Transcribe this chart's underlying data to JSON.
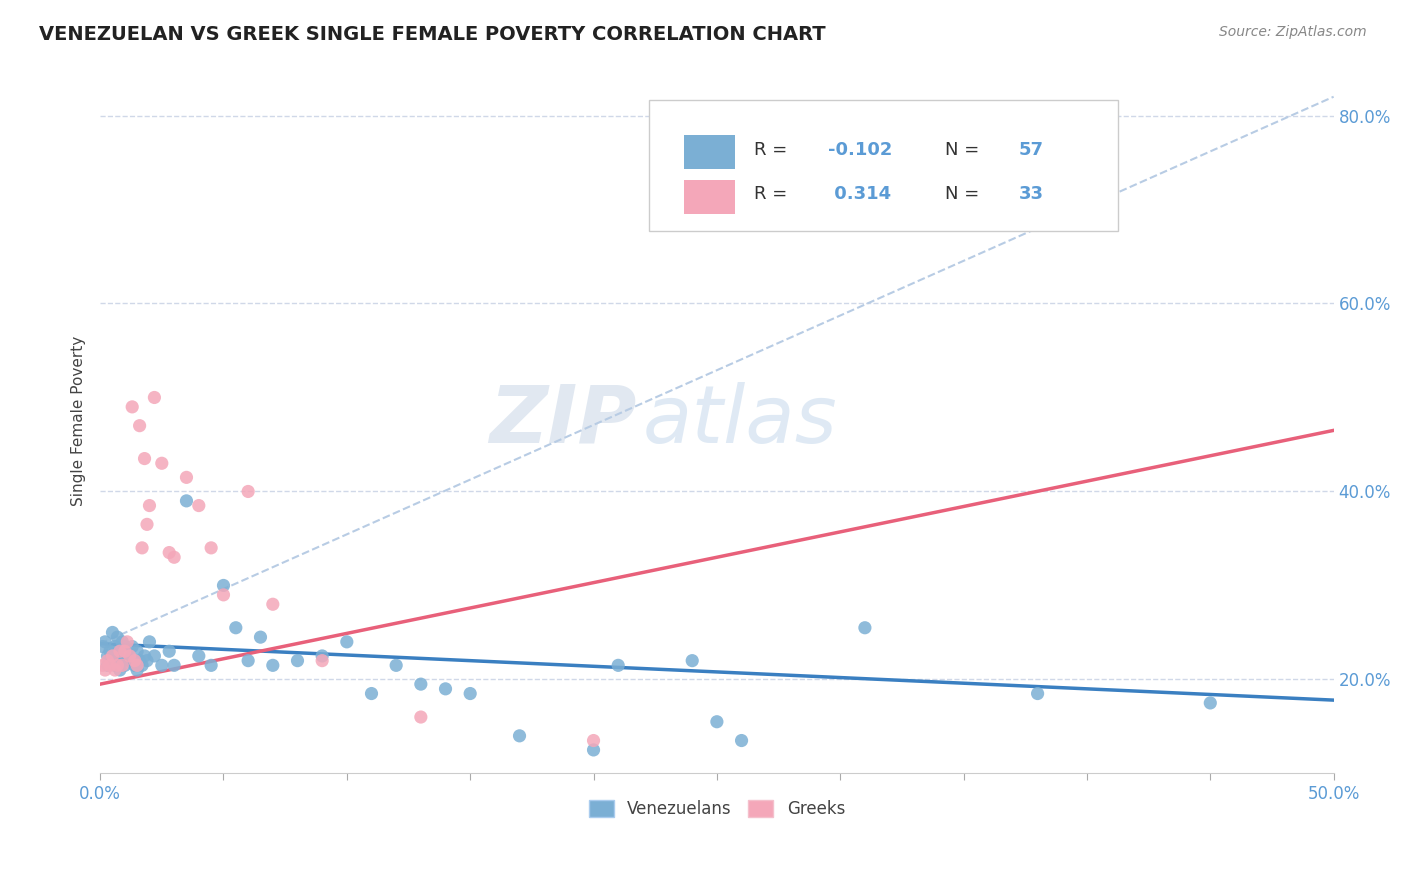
{
  "title": "VENEZUELAN VS GREEK SINGLE FEMALE POVERTY CORRELATION CHART",
  "source": "Source: ZipAtlas.com",
  "ylabel": "Single Female Poverty",
  "xlim": [
    0.0,
    0.5
  ],
  "ylim": [
    0.1,
    0.85
  ],
  "xtick_positions": [
    0.0,
    0.05,
    0.1,
    0.15,
    0.2,
    0.25,
    0.3,
    0.35,
    0.4,
    0.45,
    0.5
  ],
  "ytick_positions": [
    0.2,
    0.4,
    0.6,
    0.8
  ],
  "ytick_labels": [
    "20.0%",
    "40.0%",
    "60.0%",
    "80.0%"
  ],
  "venezuelan_color": "#7bafd4",
  "greek_color": "#f4a7b9",
  "trendline_ven_color": "#3a7fc1",
  "trendline_greek_color": "#e8607a",
  "trendline_top_color": "#b8cce4",
  "legend_R_ven": "-0.102",
  "legend_N_ven": "57",
  "legend_R_greek": "0.314",
  "legend_N_greek": "33",
  "watermark_zip": "ZIP",
  "watermark_atlas": "atlas",
  "background_color": "#ffffff",
  "grid_color": "#d0d8e8",
  "venezuelan_x": [
    0.001,
    0.002,
    0.003,
    0.003,
    0.004,
    0.005,
    0.005,
    0.006,
    0.006,
    0.007,
    0.007,
    0.008,
    0.008,
    0.009,
    0.009,
    0.01,
    0.01,
    0.011,
    0.012,
    0.013,
    0.014,
    0.015,
    0.015,
    0.016,
    0.017,
    0.018,
    0.019,
    0.02,
    0.022,
    0.025,
    0.028,
    0.03,
    0.035,
    0.04,
    0.045,
    0.05,
    0.055,
    0.06,
    0.065,
    0.07,
    0.08,
    0.09,
    0.1,
    0.11,
    0.12,
    0.13,
    0.14,
    0.15,
    0.17,
    0.2,
    0.21,
    0.24,
    0.25,
    0.26,
    0.31,
    0.38,
    0.45
  ],
  "venezuelan_y": [
    0.235,
    0.24,
    0.225,
    0.215,
    0.23,
    0.22,
    0.25,
    0.215,
    0.235,
    0.22,
    0.245,
    0.23,
    0.21,
    0.24,
    0.22,
    0.235,
    0.215,
    0.225,
    0.22,
    0.235,
    0.215,
    0.23,
    0.21,
    0.22,
    0.215,
    0.225,
    0.22,
    0.24,
    0.225,
    0.215,
    0.23,
    0.215,
    0.39,
    0.225,
    0.215,
    0.3,
    0.255,
    0.22,
    0.245,
    0.215,
    0.22,
    0.225,
    0.24,
    0.185,
    0.215,
    0.195,
    0.19,
    0.185,
    0.14,
    0.125,
    0.215,
    0.22,
    0.155,
    0.135,
    0.255,
    0.185,
    0.175
  ],
  "greek_x": [
    0.001,
    0.002,
    0.003,
    0.004,
    0.005,
    0.006,
    0.007,
    0.008,
    0.009,
    0.01,
    0.011,
    0.012,
    0.013,
    0.014,
    0.015,
    0.016,
    0.017,
    0.018,
    0.019,
    0.02,
    0.022,
    0.025,
    0.028,
    0.03,
    0.035,
    0.04,
    0.045,
    0.05,
    0.06,
    0.07,
    0.09,
    0.13,
    0.2
  ],
  "greek_y": [
    0.215,
    0.21,
    0.22,
    0.215,
    0.225,
    0.21,
    0.215,
    0.23,
    0.215,
    0.23,
    0.24,
    0.225,
    0.49,
    0.22,
    0.215,
    0.47,
    0.34,
    0.435,
    0.365,
    0.385,
    0.5,
    0.43,
    0.335,
    0.33,
    0.415,
    0.385,
    0.34,
    0.29,
    0.4,
    0.28,
    0.22,
    0.16,
    0.135
  ],
  "ven_trendline": [
    0.238,
    0.178
  ],
  "greek_trendline": [
    0.195,
    0.465
  ],
  "dashed_line": [
    0.238,
    0.82
  ]
}
